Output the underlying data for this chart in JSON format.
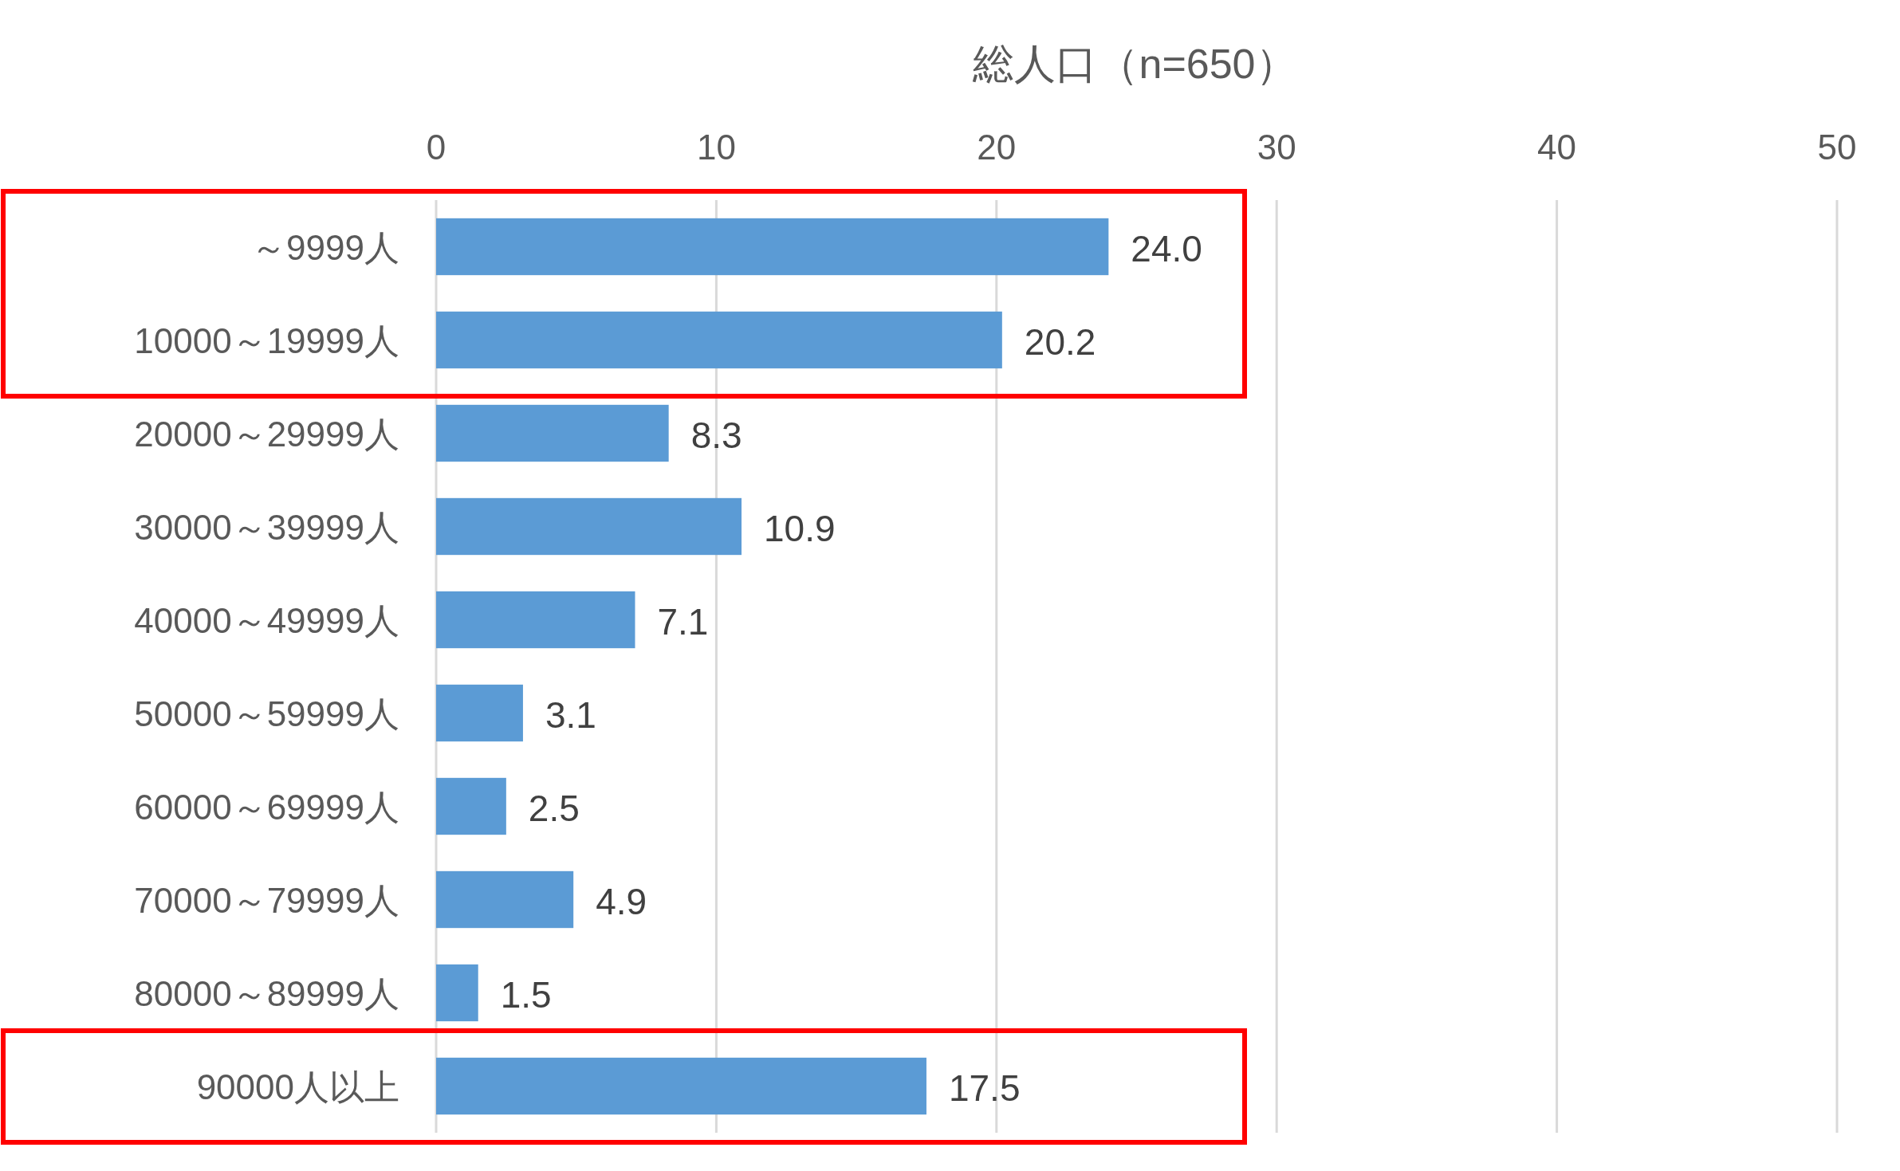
{
  "chart_data": {
    "type": "bar",
    "orientation": "horizontal",
    "title": "総人口（n=650）",
    "categories": [
      "～9999人",
      "10000～19999人",
      "20000～29999人",
      "30000～39999人",
      "40000～49999人",
      "50000～59999人",
      "60000～69999人",
      "70000～79999人",
      "80000～89999人",
      "90000人以上"
    ],
    "values": [
      24.0,
      20.2,
      8.3,
      10.9,
      7.1,
      3.1,
      2.5,
      4.9,
      1.5,
      17.5
    ],
    "value_labels": [
      "24.0",
      "20.2",
      "8.3",
      "10.9",
      "7.1",
      "3.1",
      "2.5",
      "4.9",
      "1.5",
      "17.5"
    ],
    "color": "#5b9bd5",
    "xlim": [
      0,
      50
    ],
    "xticks": [
      0,
      10,
      20,
      30,
      40,
      50
    ],
    "grid": "x"
  }
}
